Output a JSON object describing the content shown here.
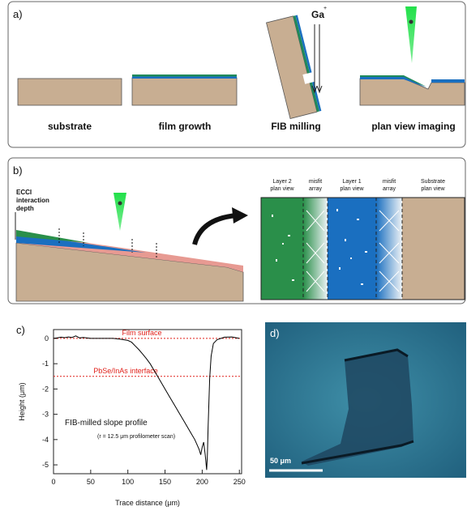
{
  "panel_a": {
    "label": "a)",
    "ion": "Ga",
    "ion_charge": "+",
    "steps": [
      "substrate",
      "film growth",
      "FIB milling",
      "plan view imaging"
    ]
  },
  "panel_b": {
    "label": "b)",
    "depth_label": [
      "ECCI",
      "interaction",
      "depth"
    ],
    "regions": [
      [
        "Layer 2",
        "plan view"
      ],
      [
        "misfit",
        "array"
      ],
      [
        "Layer 1",
        "plan view"
      ],
      [
        "misfit",
        "array"
      ],
      [
        "Substrate",
        "plan view"
      ]
    ]
  },
  "chart_data": {
    "type": "line",
    "panel_label": "c)",
    "x_label": "Trace distance (μm)",
    "y_label": "Height (μm)",
    "x": [
      0,
      5,
      10,
      15,
      20,
      25,
      30,
      35,
      40,
      50,
      60,
      70,
      80,
      90,
      100,
      105,
      110,
      115,
      120,
      125,
      130,
      135,
      140,
      145,
      150,
      155,
      160,
      165,
      170,
      175,
      180,
      185,
      190,
      193,
      196,
      198,
      200,
      202,
      204,
      206,
      207,
      208,
      209,
      210,
      212,
      215,
      220,
      230,
      240,
      250
    ],
    "values": [
      0,
      0.02,
      0.05,
      0.03,
      0.06,
      0.04,
      0.1,
      0.02,
      0.04,
      0,
      0,
      0,
      0,
      -0.03,
      -0.08,
      -0.15,
      -0.3,
      -0.45,
      -0.62,
      -0.8,
      -1.0,
      -1.25,
      -1.5,
      -1.75,
      -2.0,
      -2.25,
      -2.5,
      -2.75,
      -3.0,
      -3.25,
      -3.5,
      -3.75,
      -4.0,
      -4.2,
      -4.4,
      -4.6,
      -4.3,
      -4.1,
      -4.6,
      -5.2,
      -4.6,
      -3.5,
      -2.5,
      -1.6,
      -0.7,
      -0.2,
      -0.05,
      0.05,
      0.06,
      0
    ],
    "color": "#000000",
    "xlim": [
      0,
      253
    ],
    "ylim": [
      -5.35,
      0.35
    ],
    "xticks": [
      0,
      50,
      100,
      150,
      200,
      250
    ],
    "yticks": [
      0,
      -1,
      -2,
      -3,
      -4,
      -5
    ],
    "reference_lines": [
      {
        "value": 0,
        "label": "Film surface"
      },
      {
        "value": -1.5,
        "label": "PbSe/InAs interface"
      }
    ],
    "reference_color": "#e0201a",
    "annotations": [
      "FIB-milled slope profile",
      "(r = 12.5 μm profilometer scan)"
    ]
  },
  "panel_d": {
    "label": "d)",
    "scale_bar": "50 μm"
  }
}
